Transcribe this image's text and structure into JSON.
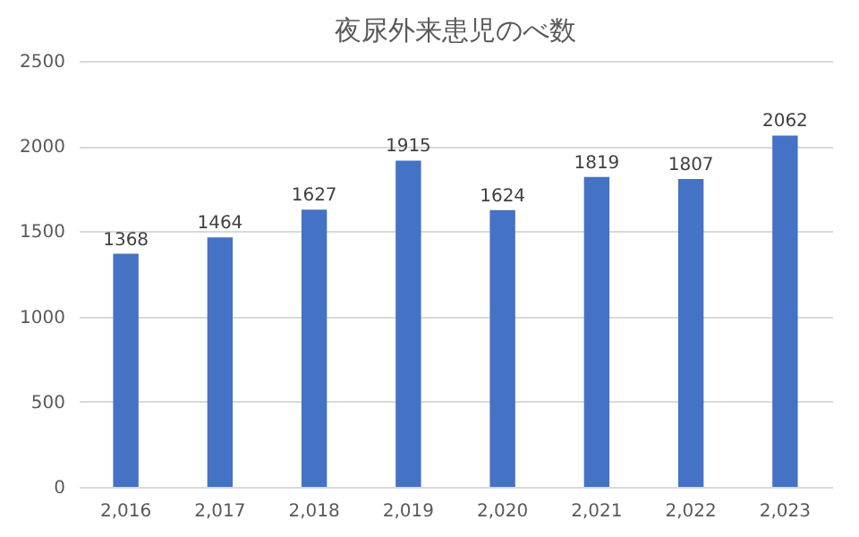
{
  "chart_data": {
    "type": "bar",
    "title": "夜尿外来患児のべ数",
    "categories": [
      "2,016",
      "2,017",
      "2,018",
      "2,019",
      "2,020",
      "2,021",
      "2,022",
      "2,023"
    ],
    "values": [
      1368,
      1464,
      1627,
      1915,
      1624,
      1819,
      1807,
      2062
    ],
    "color": "#4472c4",
    "ylim": [
      0,
      2500
    ],
    "yticks": [
      0,
      500,
      1000,
      1500,
      2000,
      2500
    ],
    "grid": "y",
    "data_labels": true
  }
}
